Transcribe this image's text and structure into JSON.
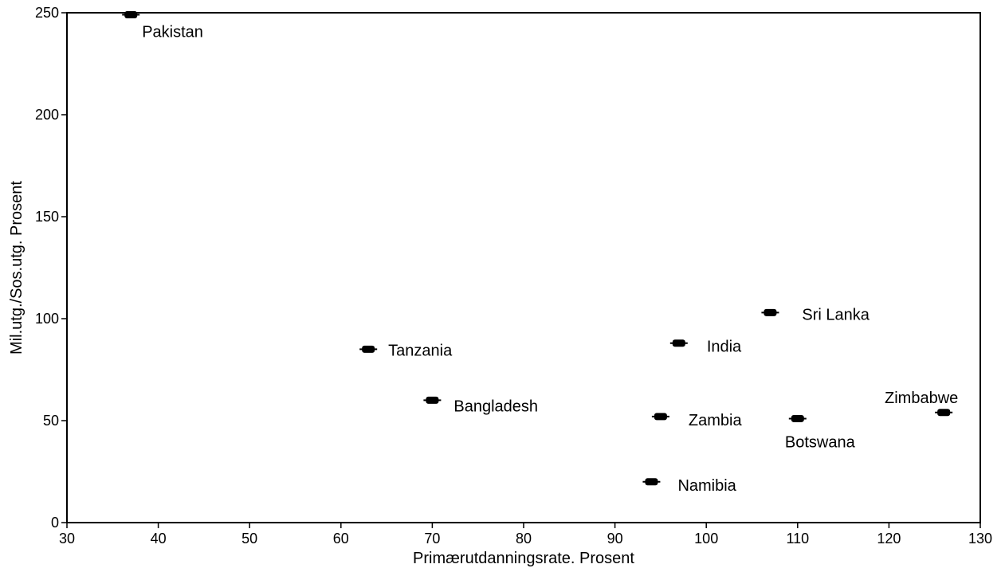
{
  "chart_data": {
    "type": "scatter",
    "title": "",
    "xlabel": "Primærutdanningsrate. Prosent",
    "ylabel": "Mil.utg./Sos.utg. Prosent",
    "xlim": [
      30,
      130
    ],
    "ylim": [
      0,
      250
    ],
    "x_ticks": [
      30,
      40,
      50,
      60,
      70,
      80,
      90,
      100,
      110,
      120,
      130
    ],
    "y_ticks": [
      0,
      50,
      100,
      150,
      200,
      250
    ],
    "grid": false,
    "legend": "none",
    "marker_color": "#000000",
    "points": [
      {
        "label": "Pakistan",
        "x": 37,
        "y": 249
      },
      {
        "label": "Tanzania",
        "x": 63,
        "y": 85
      },
      {
        "label": "Bangladesh",
        "x": 70,
        "y": 60
      },
      {
        "label": "India",
        "x": 97,
        "y": 88
      },
      {
        "label": "Sri Lanka",
        "x": 107,
        "y": 103
      },
      {
        "label": "Zambia",
        "x": 95,
        "y": 52
      },
      {
        "label": "Namibia",
        "x": 94,
        "y": 20
      },
      {
        "label": "Botswana",
        "x": 110,
        "y": 51
      },
      {
        "label": "Zimbabwe",
        "x": 126,
        "y": 54
      }
    ]
  }
}
